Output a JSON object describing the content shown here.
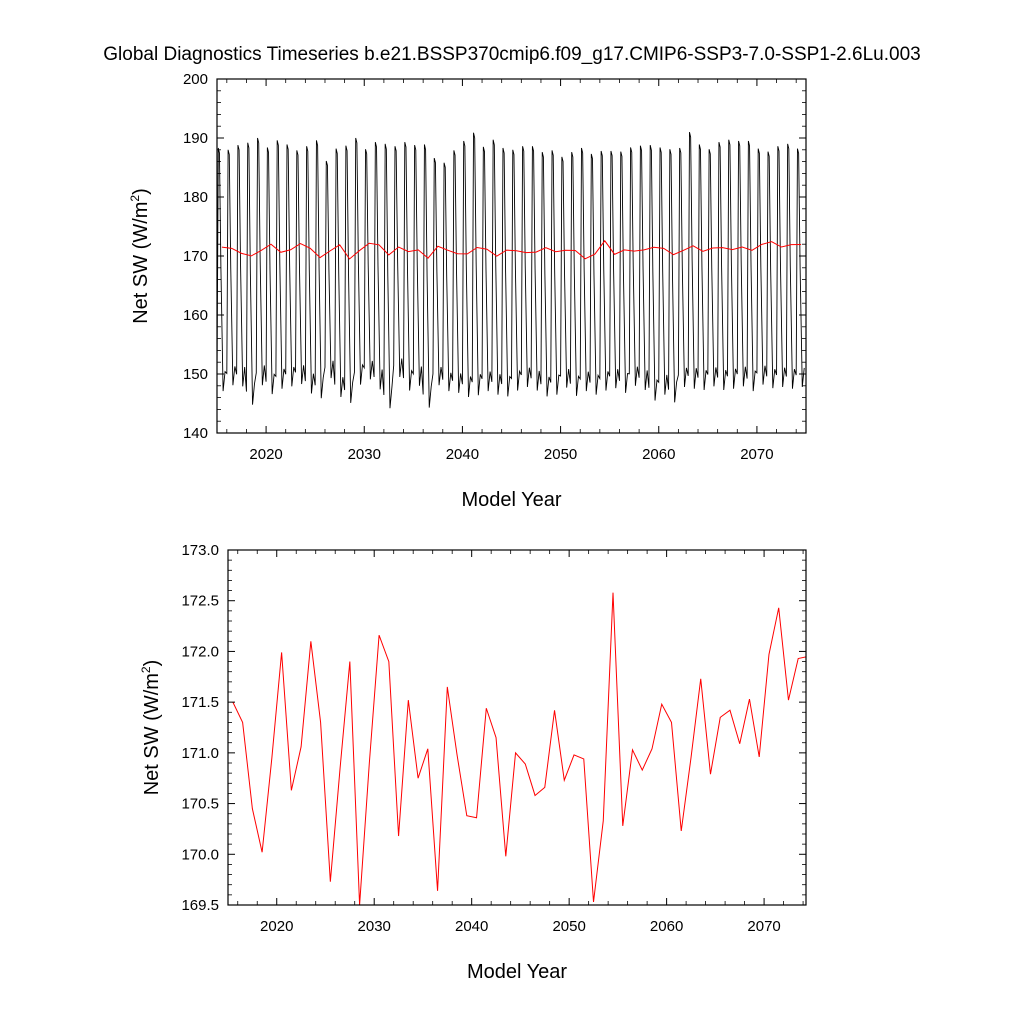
{
  "page": {
    "title": "Global Diagnostics Timeseries b.e21.BSSP370cmip6.f09_g17.CMIP6-SSP3-7.0-SSP1-2.6Lu.003"
  },
  "colors": {
    "monthly": "#000000",
    "annual": "#ff0000",
    "axes": "#000000"
  },
  "chart_data": [
    {
      "type": "line",
      "title": "Global Diagnostics Timeseries b.e21.BSSP370cmip6.f09_g17.CMIP6-SSP3-7.0-SSP1-2.6Lu.003",
      "xlabel": "Model Year",
      "ylabel": "Net SW (W/m²)",
      "ylabel_main": "Net SW (W/m",
      "ylabel_sup": "2",
      "ylabel_close": ")",
      "xlim": [
        2015,
        2075
      ],
      "ylim": [
        140,
        200
      ],
      "xticks": [
        2020,
        2030,
        2040,
        2050,
        2060,
        2070
      ],
      "yticks": [
        140,
        150,
        160,
        170,
        180,
        190,
        200
      ],
      "grid": false,
      "series": [
        {
          "style": "monthly-cycle",
          "color": "#000000",
          "x_start": 2015.0,
          "x_end": 2075.0,
          "annual_max": [
            188.3,
            188.0,
            188.8,
            189.2,
            190.0,
            188.4,
            189.6,
            188.9,
            187.9,
            188.6,
            189.6,
            186.1,
            188.2,
            188.7,
            190.0,
            188.1,
            189.3,
            189.0,
            188.6,
            189.3,
            188.8,
            188.9,
            186.6,
            185.8,
            187.9,
            189.5,
            190.9,
            188.5,
            189.7,
            188.3,
            188.0,
            188.6,
            188.6,
            187.6,
            187.9,
            186.8,
            187.6,
            188.3,
            187.3,
            187.8,
            187.8,
            187.7,
            188.4,
            188.7,
            188.8,
            188.4,
            188.1,
            188.3,
            191.0,
            188.9,
            188.1,
            189.3,
            189.7,
            189.5,
            189.5,
            188.2,
            187.7,
            188.6,
            189.0,
            188.2
          ],
          "annual_min": [
            147.1,
            148.1,
            147.9,
            144.8,
            148.1,
            146.6,
            147.5,
            147.9,
            148.3,
            146.7,
            145.9,
            149.3,
            146.1,
            145.1,
            148.2,
            149.1,
            147.4,
            144.2,
            149.5,
            147.2,
            148.0,
            144.3,
            148.1,
            147.1,
            146.8,
            146.1,
            146.4,
            147.1,
            146.5,
            146.2,
            147.2,
            147.8,
            147.2,
            146.2,
            146.5,
            147.7,
            146.3,
            147.1,
            146.5,
            147.2,
            147.6,
            146.8,
            148.0,
            147.3,
            145.5,
            146.5,
            145.2,
            147.8,
            147.5,
            147.3,
            147.9,
            147.3,
            147.5,
            147.9,
            147.1,
            148.2,
            147.6,
            147.8,
            147.5,
            147.8
          ]
        },
        {
          "style": "annual-mean",
          "color": "#ff0000",
          "x": [
            2015.5,
            2016.5,
            2017.5,
            2018.5,
            2019.5,
            2020.5,
            2021.5,
            2022.5,
            2023.5,
            2024.5,
            2025.5,
            2026.5,
            2027.5,
            2028.5,
            2029.5,
            2030.5,
            2031.5,
            2032.5,
            2033.5,
            2034.5,
            2035.5,
            2036.5,
            2037.5,
            2038.5,
            2039.5,
            2040.5,
            2041.5,
            2042.5,
            2043.5,
            2044.5,
            2045.5,
            2046.5,
            2047.5,
            2048.5,
            2049.5,
            2050.5,
            2051.5,
            2052.5,
            2053.5,
            2054.5,
            2055.5,
            2056.5,
            2057.5,
            2058.5,
            2059.5,
            2060.5,
            2061.5,
            2062.5,
            2063.5,
            2064.5,
            2065.5,
            2066.5,
            2067.5,
            2068.5,
            2069.5,
            2070.5,
            2071.5,
            2072.5,
            2073.5,
            2074.5
          ],
          "values": [
            171.5,
            171.3,
            170.45,
            170.02,
            170.95,
            171.99,
            170.63,
            171.06,
            172.1,
            171.3,
            169.73,
            170.85,
            171.9,
            169.5,
            170.9,
            172.16,
            171.9,
            170.18,
            171.52,
            170.75,
            171.04,
            169.64,
            171.65,
            170.98,
            170.38,
            170.36,
            171.44,
            171.15,
            169.98,
            171.0,
            170.89,
            170.58,
            170.66,
            171.42,
            170.73,
            170.98,
            170.94,
            169.53,
            170.33,
            172.58,
            170.28,
            171.03,
            170.83,
            171.04,
            171.48,
            171.3,
            170.23,
            170.95,
            171.73,
            170.79,
            171.35,
            171.42,
            171.09,
            171.53,
            170.96,
            171.97,
            172.43,
            171.52,
            171.93,
            171.95
          ]
        }
      ]
    },
    {
      "type": "line",
      "xlabel": "Model Year",
      "ylabel": "Net SW (W/m²)",
      "ylabel_main": "Net SW (W/m",
      "ylabel_sup": "2",
      "ylabel_close": ")",
      "xlim": [
        2015,
        2074.3
      ],
      "ylim": [
        169.5,
        173.0
      ],
      "xticks": [
        2020,
        2030,
        2040,
        2050,
        2060,
        2070
      ],
      "yticks": [
        169.5,
        170.0,
        170.5,
        171.0,
        171.5,
        172.0,
        172.5,
        173.0
      ],
      "ytick_labels": [
        "169.5",
        "170.0",
        "170.5",
        "171.0",
        "171.5",
        "172.0",
        "172.5",
        "173.0"
      ],
      "grid": false,
      "series": [
        {
          "style": "annual-mean",
          "color": "#ff0000",
          "x": [
            2015.5,
            2016.5,
            2017.5,
            2018.5,
            2019.5,
            2020.5,
            2021.5,
            2022.5,
            2023.5,
            2024.5,
            2025.5,
            2026.5,
            2027.5,
            2028.5,
            2029.5,
            2030.5,
            2031.5,
            2032.5,
            2033.5,
            2034.5,
            2035.5,
            2036.5,
            2037.5,
            2038.5,
            2039.5,
            2040.5,
            2041.5,
            2042.5,
            2043.5,
            2044.5,
            2045.5,
            2046.5,
            2047.5,
            2048.5,
            2049.5,
            2050.5,
            2051.5,
            2052.5,
            2053.5,
            2054.5,
            2055.5,
            2056.5,
            2057.5,
            2058.5,
            2059.5,
            2060.5,
            2061.5,
            2062.5,
            2063.5,
            2064.5,
            2065.5,
            2066.5,
            2067.5,
            2068.5,
            2069.5,
            2070.5,
            2071.5,
            2072.5,
            2073.5,
            2074.5
          ],
          "values": [
            171.5,
            171.3,
            170.45,
            170.02,
            170.95,
            171.99,
            170.63,
            171.06,
            172.1,
            171.3,
            169.73,
            170.85,
            171.9,
            169.5,
            170.9,
            172.16,
            171.9,
            170.18,
            171.52,
            170.75,
            171.04,
            169.64,
            171.65,
            170.98,
            170.38,
            170.36,
            171.44,
            171.15,
            169.98,
            171.0,
            170.89,
            170.58,
            170.66,
            171.42,
            170.73,
            170.98,
            170.94,
            169.53,
            170.33,
            172.58,
            170.28,
            171.03,
            170.83,
            171.04,
            171.48,
            171.3,
            170.23,
            170.95,
            171.73,
            170.79,
            171.35,
            171.42,
            171.09,
            171.53,
            170.96,
            171.97,
            172.43,
            171.52,
            171.93,
            171.95
          ]
        }
      ]
    }
  ]
}
